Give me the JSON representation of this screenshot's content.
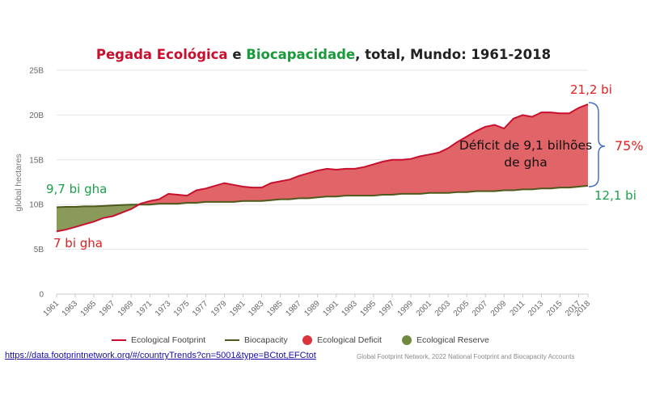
{
  "title": {
    "part1": "Pegada Ecológica",
    "part2": " e ",
    "part3": "Biocapacidade",
    "part4": ", total, Mundo: 1961-2018"
  },
  "colors": {
    "footprint_line": "#c8102e",
    "biocapacity_line": "#4d5a1b",
    "deficit_fill": "#e06468",
    "reserve_fill": "#8a9a5b",
    "title_red": "#c8102e",
    "title_green": "#1a9a3a"
  },
  "chart_data": {
    "type": "line",
    "title": "Pegada Ecológica e Biocapacidade, total, Mundo: 1961-2018",
    "ylabel": "global hectares",
    "ylim": [
      0,
      25
    ],
    "y_unit": "billion gha",
    "y_ticks": [
      "0",
      "5B",
      "10B",
      "15B",
      "20B",
      "25B"
    ],
    "x_ticks": [
      "1961",
      "1963",
      "1965",
      "1967",
      "1969",
      "1971",
      "1973",
      "1975",
      "1977",
      "1979",
      "1981",
      "1983",
      "1985",
      "1987",
      "1989",
      "1991",
      "1993",
      "1995",
      "1997",
      "1999",
      "2001",
      "2003",
      "2005",
      "2007",
      "2009",
      "2011",
      "2013",
      "2015",
      "2017",
      "2018"
    ],
    "x": [
      1961,
      1962,
      1963,
      1964,
      1965,
      1966,
      1967,
      1968,
      1969,
      1970,
      1971,
      1972,
      1973,
      1974,
      1975,
      1976,
      1977,
      1978,
      1979,
      1980,
      1981,
      1982,
      1983,
      1984,
      1985,
      1986,
      1987,
      1988,
      1989,
      1990,
      1991,
      1992,
      1993,
      1994,
      1995,
      1996,
      1997,
      1998,
      1999,
      2000,
      2001,
      2002,
      2003,
      2004,
      2005,
      2006,
      2007,
      2008,
      2009,
      2010,
      2011,
      2012,
      2013,
      2014,
      2015,
      2016,
      2017,
      2018
    ],
    "grid": true,
    "series": [
      {
        "name": "Ecological Footprint",
        "values": [
          7.0,
          7.2,
          7.5,
          7.8,
          8.1,
          8.5,
          8.7,
          9.1,
          9.5,
          10.1,
          10.4,
          10.6,
          11.2,
          11.1,
          11.0,
          11.6,
          11.8,
          12.1,
          12.4,
          12.2,
          12.0,
          11.9,
          11.9,
          12.4,
          12.6,
          12.8,
          13.2,
          13.5,
          13.8,
          14.0,
          13.9,
          14.0,
          14.0,
          14.2,
          14.5,
          14.8,
          15.0,
          15.0,
          15.1,
          15.4,
          15.6,
          15.8,
          16.3,
          17.0,
          17.6,
          18.2,
          18.7,
          18.9,
          18.5,
          19.6,
          20.0,
          19.8,
          20.3,
          20.3,
          20.2,
          20.2,
          20.8,
          21.2
        ]
      },
      {
        "name": "Biocapacity",
        "values": [
          9.7,
          9.75,
          9.75,
          9.8,
          9.8,
          9.85,
          9.9,
          9.95,
          10.0,
          10.0,
          10.0,
          10.1,
          10.1,
          10.1,
          10.2,
          10.2,
          10.3,
          10.3,
          10.3,
          10.3,
          10.4,
          10.4,
          10.4,
          10.5,
          10.6,
          10.6,
          10.7,
          10.7,
          10.8,
          10.9,
          10.9,
          11.0,
          11.0,
          11.0,
          11.0,
          11.1,
          11.1,
          11.2,
          11.2,
          11.2,
          11.3,
          11.3,
          11.3,
          11.4,
          11.4,
          11.5,
          11.5,
          11.5,
          11.6,
          11.6,
          11.7,
          11.7,
          11.8,
          11.8,
          11.9,
          11.9,
          12.0,
          12.1
        ]
      }
    ],
    "legend": [
      "Ecological Footprint",
      "Biocapacity",
      "Ecological Deficit",
      "Ecological Reserve"
    ],
    "legend_position": "bottom"
  },
  "annotations": {
    "fp_end": "21,2 bi",
    "bc_end": "12,1 bi",
    "bc_start": "9,7 bi gha",
    "fp_start": "7 bi gha",
    "percent": "75%",
    "deficit": "Déficit de 9,1 bilhões de gha"
  },
  "legend": {
    "footprint": "Ecological Footprint",
    "biocapacity": "Biocapacity",
    "deficit": "Ecological Deficit",
    "reserve": "Ecological Reserve"
  },
  "source": {
    "link": "https://data.footprintnetwork.org/#/countryTrends?cn=5001&type=BCtot,EFCtot",
    "credit": "Global Footprint Network, 2022 National Footprint and Biocapacity Accounts"
  }
}
